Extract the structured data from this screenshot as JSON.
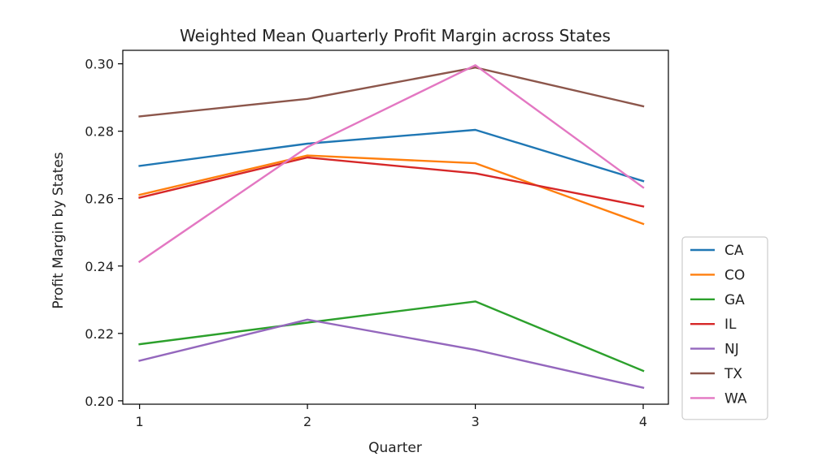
{
  "chart_data": {
    "type": "line",
    "title": "Weighted Mean Quarterly Profit Margin across States",
    "xlabel": "Quarter",
    "ylabel": "Profit Margin by States",
    "x": [
      1,
      2,
      3,
      4
    ],
    "x_tick_labels": [
      "1",
      "2",
      "3",
      "4"
    ],
    "y_ticks": [
      0.2,
      0.22,
      0.24,
      0.26,
      0.28,
      0.3
    ],
    "y_tick_labels": [
      "0.20",
      "0.22",
      "0.24",
      "0.26",
      "0.28",
      "0.30"
    ],
    "xlim": [
      0.9,
      4.15
    ],
    "ylim": [
      0.199,
      0.304
    ],
    "grid": false,
    "legend_position": "lower-right-outside",
    "series": [
      {
        "name": "CA",
        "color": "#1f77b4",
        "values": [
          0.2697,
          0.2763,
          0.2804,
          0.2652
        ]
      },
      {
        "name": "CO",
        "color": "#ff7f0e",
        "values": [
          0.2611,
          0.2728,
          0.2705,
          0.2525
        ]
      },
      {
        "name": "GA",
        "color": "#2ca02c",
        "values": [
          0.2168,
          0.2232,
          0.2295,
          0.2089
        ]
      },
      {
        "name": "IL",
        "color": "#d62728",
        "values": [
          0.2603,
          0.2722,
          0.2675,
          0.2577
        ]
      },
      {
        "name": "NJ",
        "color": "#9467bd",
        "values": [
          0.2119,
          0.2241,
          0.2151,
          0.2039
        ]
      },
      {
        "name": "TX",
        "color": "#8c564b",
        "values": [
          0.2844,
          0.2896,
          0.2989,
          0.2874
        ]
      },
      {
        "name": "WA",
        "color": "#e377c2",
        "values": [
          0.2413,
          0.2753,
          0.2996,
          0.2633
        ]
      }
    ]
  }
}
